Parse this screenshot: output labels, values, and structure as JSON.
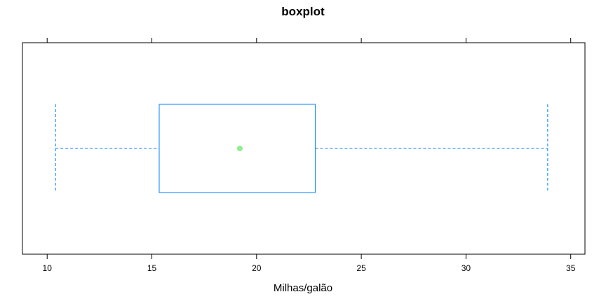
{
  "chart_data": {
    "type": "boxplot",
    "title": "boxplot",
    "xlabel": "Milhas/galão",
    "ylabel": "",
    "xlim": [
      8.82,
      35.68
    ],
    "x_ticks": [
      10,
      15,
      20,
      25,
      30,
      35
    ],
    "tick_labels": [
      "10",
      "15",
      "20",
      "25",
      "30",
      "35"
    ],
    "grid": false,
    "legend": "none",
    "box": {
      "min": 10.4,
      "q1": 15.35,
      "median": 19.2,
      "q3": 22.8,
      "max": 33.9
    },
    "colors": {
      "box": "#0080ff",
      "median_dot": "#90ee90",
      "frame": "#000000"
    }
  }
}
